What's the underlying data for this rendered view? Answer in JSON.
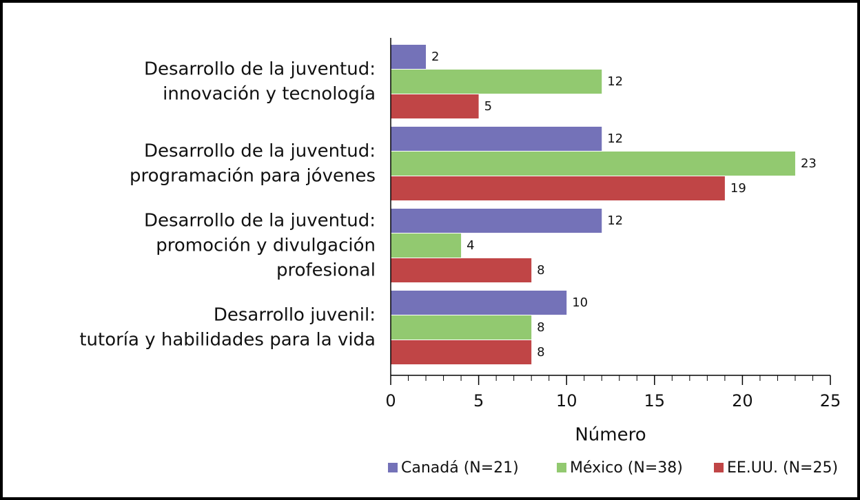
{
  "chart_data": {
    "type": "hbar",
    "categories": [
      [
        "Desarrollo de la juventud:",
        "innovación y tecnología"
      ],
      [
        "Desarrollo de la juventud:",
        "programación para jóvenes"
      ],
      [
        "Desarrollo de la juventud:",
        "promoción y divulgación",
        "profesional"
      ],
      [
        "Desarrollo juvenil:",
        "tutoría y habilidades para la vida"
      ]
    ],
    "series": [
      {
        "name": "Canadá (N=21)",
        "color": "#7472b8",
        "values": [
          2,
          12,
          12,
          10
        ]
      },
      {
        "name": "México (N=38)",
        "color": "#92c970",
        "values": [
          12,
          23,
          4,
          8
        ]
      },
      {
        "name": "EE.UU. (N=25)",
        "color": "#c04546",
        "values": [
          5,
          19,
          8,
          8
        ]
      }
    ],
    "xlabel": "Número",
    "xlim": [
      0,
      25
    ],
    "xticks": [
      0,
      5,
      10,
      15,
      20,
      25
    ],
    "legend": "bottom",
    "grid": false
  }
}
